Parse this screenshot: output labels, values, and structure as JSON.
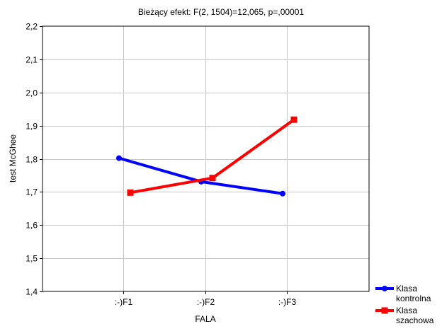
{
  "chart_data": {
    "type": "line",
    "title": "Bieżący efekt: F(2, 1504)=12,065, p=,00001",
    "xlabel": "FALA",
    "ylabel": "test McGhee",
    "categories": [
      ":-)F1",
      ":-)F2",
      ":-)F3"
    ],
    "ylim": [
      1.4,
      2.2
    ],
    "yticks": [
      "1,4",
      "1,5",
      "1,6",
      "1,7",
      "1,8",
      "1,9",
      "2,0",
      "2,1",
      "2,2"
    ],
    "grid": true,
    "legend_position": "bottom-right outside",
    "series": [
      {
        "name": "Klasa kontrolna",
        "legend_lines": [
          "Klasa",
          "kontrolna"
        ],
        "color": "#0000ff",
        "marker": "circle",
        "values": [
          1.802,
          1.731,
          1.695
        ]
      },
      {
        "name": "Klasa szachowa",
        "legend_lines": [
          "Klasa",
          "szachowa"
        ],
        "color": "#ff0000",
        "marker": "square",
        "values": [
          1.698,
          1.742,
          1.918
        ]
      }
    ]
  }
}
